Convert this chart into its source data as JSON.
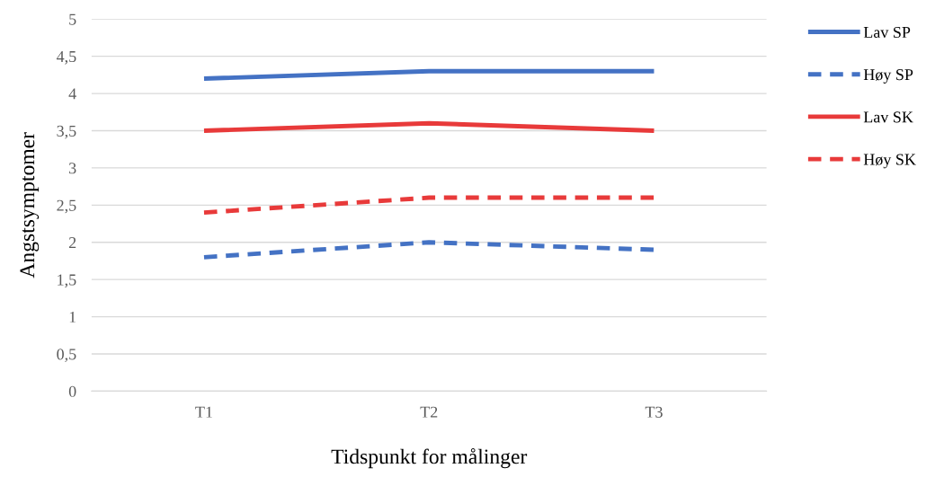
{
  "chart_data": {
    "type": "line",
    "xlabel": "Tidspunkt for målinger",
    "ylabel": "Angstsymptomer",
    "categories": [
      "T1",
      "T2",
      "T3"
    ],
    "series": [
      {
        "name": "Lav SP",
        "color": "#4472c4",
        "values": [
          4.2,
          4.3,
          4.3
        ],
        "line_style": "solid"
      },
      {
        "name": "Høy SP",
        "color": "#4472c4",
        "values": [
          1.8,
          2.0,
          1.9
        ],
        "line_style": "dashed"
      },
      {
        "name": "Lav SK",
        "color": "#e83a3a",
        "values": [
          3.5,
          3.6,
          3.5
        ],
        "line_style": "solid"
      },
      {
        "name": "Høy SK",
        "color": "#e83a3a",
        "values": [
          2.4,
          2.6,
          2.6
        ],
        "line_style": "dashed"
      }
    ],
    "ylim": [
      0,
      5
    ],
    "yticks": [
      0,
      {
        "value": 0.5,
        "label": "0,5"
      },
      1,
      {
        "value": 1.5,
        "label": "1,5"
      },
      2,
      {
        "value": 2.5,
        "label": "2,5"
      },
      3,
      {
        "value": 3.5,
        "label": "3,5"
      },
      4,
      {
        "value": 4.5,
        "label": "4,5"
      },
      5
    ],
    "grid": "y",
    "legend": "right",
    "marker": "none"
  }
}
